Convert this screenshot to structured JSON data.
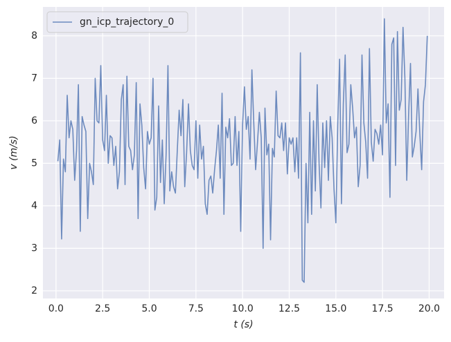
{
  "chart_data": {
    "type": "line",
    "x_label": "t (s)",
    "y_label": "v (m/s)",
    "x": [
      0.1,
      0.2,
      0.3,
      0.4,
      0.5,
      0.6,
      0.7,
      0.8,
      0.9,
      1.0,
      1.1,
      1.2,
      1.3,
      1.4,
      1.5,
      1.6,
      1.7,
      1.8,
      1.9,
      2.0,
      2.1,
      2.2,
      2.3,
      2.4,
      2.5,
      2.6,
      2.7,
      2.8,
      2.9,
      3.0,
      3.1,
      3.2,
      3.3,
      3.4,
      3.5,
      3.6,
      3.7,
      3.8,
      3.9,
      4.0,
      4.1,
      4.2,
      4.3,
      4.4,
      4.5,
      4.6,
      4.7,
      4.8,
      4.9,
      5.0,
      5.1,
      5.2,
      5.3,
      5.4,
      5.5,
      5.6,
      5.7,
      5.8,
      5.9,
      6.0,
      6.1,
      6.2,
      6.3,
      6.4,
      6.5,
      6.6,
      6.7,
      6.8,
      6.9,
      7.0,
      7.1,
      7.2,
      7.3,
      7.4,
      7.5,
      7.6,
      7.7,
      7.8,
      7.9,
      8.0,
      8.1,
      8.2,
      8.3,
      8.4,
      8.5,
      8.6,
      8.7,
      8.8,
      8.9,
      9.0,
      9.1,
      9.2,
      9.3,
      9.4,
      9.5,
      9.6,
      9.7,
      9.8,
      9.9,
      10.0,
      10.1,
      10.2,
      10.3,
      10.4,
      10.5,
      10.6,
      10.7,
      10.8,
      10.9,
      11.0,
      11.1,
      11.2,
      11.3,
      11.4,
      11.5,
      11.6,
      11.7,
      11.8,
      11.9,
      12.0,
      12.1,
      12.2,
      12.3,
      12.4,
      12.5,
      12.6,
      12.7,
      12.8,
      12.9,
      13.0,
      13.1,
      13.2,
      13.3,
      13.4,
      13.5,
      13.6,
      13.7,
      13.8,
      13.9,
      14.0,
      14.1,
      14.2,
      14.3,
      14.4,
      14.5,
      14.6,
      14.7,
      14.8,
      14.9,
      15.0,
      15.1,
      15.2,
      15.3,
      15.4,
      15.5,
      15.6,
      15.7,
      15.8,
      15.9,
      16.0,
      16.1,
      16.2,
      16.3,
      16.4,
      16.5,
      16.6,
      16.7,
      16.8,
      16.9,
      17.0,
      17.1,
      17.2,
      17.3,
      17.4,
      17.5,
      17.6,
      17.7,
      17.8,
      17.9,
      18.0,
      18.1,
      18.2,
      18.3,
      18.4,
      18.5,
      18.6,
      18.7,
      18.8,
      18.9,
      19.0,
      19.1,
      19.2,
      19.3,
      19.4,
      19.5,
      19.6,
      19.7,
      19.8,
      19.9
    ],
    "series": [
      {
        "name": "gn_icp_trajectory_0",
        "color": "#4c72b0",
        "values": [
          5.05,
          5.55,
          3.22,
          5.1,
          4.8,
          6.6,
          5.6,
          6.0,
          5.8,
          4.6,
          5.3,
          6.85,
          3.4,
          6.1,
          5.9,
          5.75,
          3.7,
          5.0,
          4.8,
          4.5,
          7.0,
          6.0,
          5.95,
          7.3,
          5.55,
          5.3,
          6.6,
          5.0,
          5.65,
          5.6,
          4.95,
          5.4,
          4.4,
          4.8,
          6.5,
          6.85,
          4.5,
          7.05,
          5.4,
          5.3,
          4.85,
          5.2,
          6.9,
          3.7,
          6.4,
          5.9,
          4.9,
          4.4,
          5.75,
          5.45,
          5.6,
          7.0,
          3.9,
          4.2,
          6.35,
          4.55,
          5.55,
          4.05,
          5.2,
          7.3,
          4.35,
          4.8,
          4.45,
          4.3,
          5.3,
          6.25,
          5.65,
          6.5,
          4.45,
          5.25,
          6.4,
          5.3,
          4.95,
          4.85,
          6.0,
          4.65,
          5.9,
          5.1,
          5.4,
          4.05,
          3.8,
          4.6,
          4.7,
          4.3,
          4.85,
          5.3,
          5.9,
          4.65,
          6.65,
          3.8,
          5.85,
          5.6,
          6.05,
          4.95,
          5.0,
          6.1,
          4.95,
          5.75,
          3.4,
          5.9,
          6.8,
          5.8,
          6.1,
          5.1,
          7.2,
          5.95,
          4.85,
          5.5,
          6.2,
          5.6,
          3.0,
          6.3,
          5.2,
          5.45,
          3.2,
          5.35,
          5.15,
          6.7,
          5.65,
          5.6,
          5.95,
          5.3,
          5.95,
          4.75,
          5.6,
          5.45,
          5.6,
          4.8,
          5.6,
          4.65,
          7.6,
          2.25,
          2.2,
          5.0,
          3.6,
          6.2,
          3.8,
          6.0,
          4.35,
          6.85,
          5.0,
          3.95,
          5.95,
          4.9,
          6.0,
          4.6,
          6.1,
          5.6,
          4.4,
          3.6,
          5.9,
          7.45,
          4.05,
          6.4,
          7.55,
          5.25,
          5.45,
          6.85,
          6.3,
          5.6,
          5.85,
          4.45,
          4.95,
          7.55,
          5.95,
          5.5,
          4.65,
          7.7,
          5.5,
          5.05,
          5.8,
          5.7,
          5.45,
          5.9,
          5.2,
          8.4,
          5.95,
          6.4,
          4.2,
          7.8,
          7.95,
          4.95,
          8.1,
          6.25,
          6.5,
          8.2,
          7.0,
          4.6,
          6.15,
          7.35,
          5.15,
          5.4,
          5.75,
          6.75,
          5.7,
          4.85,
          6.45,
          6.85,
          8.0
        ]
      }
    ],
    "xlim": [
      -0.7,
      20.8
    ],
    "ylim": [
      1.82,
      8.68
    ],
    "xticks": [
      {
        "value": 0,
        "label": "0.0"
      },
      2.5,
      {
        "value": 5,
        "label": "5.0"
      },
      7.5,
      {
        "value": 10,
        "label": "10.0"
      },
      12.5,
      {
        "value": 15,
        "label": "15.0"
      },
      17.5,
      {
        "value": 20,
        "label": "20.0"
      }
    ],
    "yticks": [
      2,
      3,
      4,
      5,
      6,
      7,
      8
    ],
    "grid": true,
    "legend": "upper left"
  }
}
